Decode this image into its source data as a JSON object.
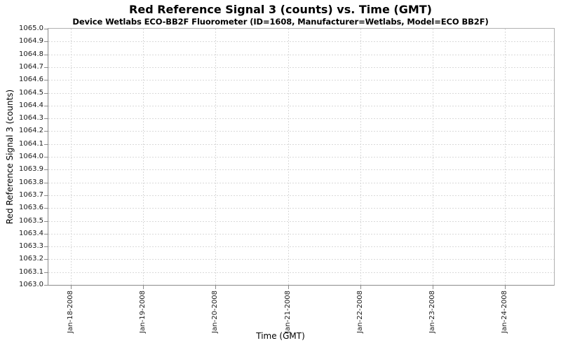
{
  "page": {
    "background": "#ffffff"
  },
  "chart_data": {
    "type": "line",
    "title": "Red Reference Signal 3 (counts) vs. Time (GMT)",
    "subtitle": "Device Wetlabs ECO-BB2F Fluorometer (ID=1608, Manufacturer=Wetlabs, Model=ECO BB2F)",
    "xlabel": "Time (GMT)",
    "ylabel": "Red Reference Signal 3 (counts)",
    "series": [],
    "x_tick_labels": [
      "Jan-18-2008",
      "Jan-19-2008",
      "Jan-20-2008",
      "Jan-21-2008",
      "Jan-22-2008",
      "Jan-23-2008",
      "Jan-24-2008"
    ],
    "y_tick_labels": [
      "1065.0",
      "1064.9",
      "1064.8",
      "1064.7",
      "1064.6",
      "1064.5",
      "1064.4",
      "1064.3",
      "1064.2",
      "1064.1",
      "1064.0",
      "1063.9",
      "1063.8",
      "1063.7",
      "1063.6",
      "1063.5",
      "1063.4",
      "1063.3",
      "1063.2",
      "1063.1",
      "1063.0"
    ],
    "ylim": [
      1063.0,
      1065.0
    ],
    "y_tick_step": 0.1,
    "grid": {
      "horizontal": true,
      "vertical": true,
      "style": "dashed"
    },
    "legend": "none",
    "colors": {
      "gridline": "#d9d9d9",
      "plot_border": "#b0b0b0",
      "axis_line": "#8a8a8a",
      "tick_mark": "#8a8a8a",
      "text": "#000000",
      "plot_background": "#ffffff"
    }
  }
}
